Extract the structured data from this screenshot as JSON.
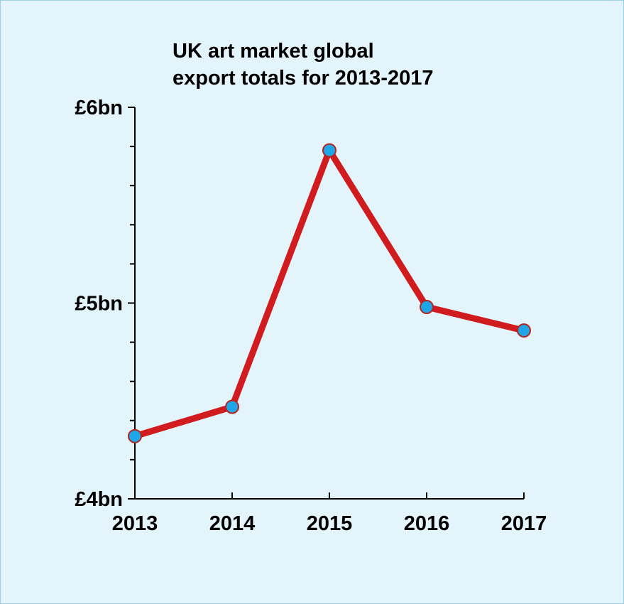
{
  "chart_data": {
    "type": "line",
    "title_lines": [
      "UK art market global",
      "export totals for 2013-2017"
    ],
    "categories": [
      "2013",
      "2014",
      "2015",
      "2016",
      "2017"
    ],
    "series": [
      {
        "values": [
          4.32,
          4.47,
          5.78,
          4.98,
          4.86
        ]
      }
    ],
    "yticks": [
      {
        "value": 6,
        "label": "£6bn"
      },
      {
        "value": 5,
        "label": "£5bn"
      },
      {
        "value": 4,
        "label": "£4bn"
      }
    ],
    "ylim": [
      4,
      6
    ],
    "minor_tick_step": 0.2,
    "grid": false,
    "colors": {
      "background": "#e3f4fb",
      "line": "#d01c1f",
      "marker_fill": "#1ea6e8",
      "marker_stroke": "#b3261e",
      "axis": "#000000"
    }
  }
}
